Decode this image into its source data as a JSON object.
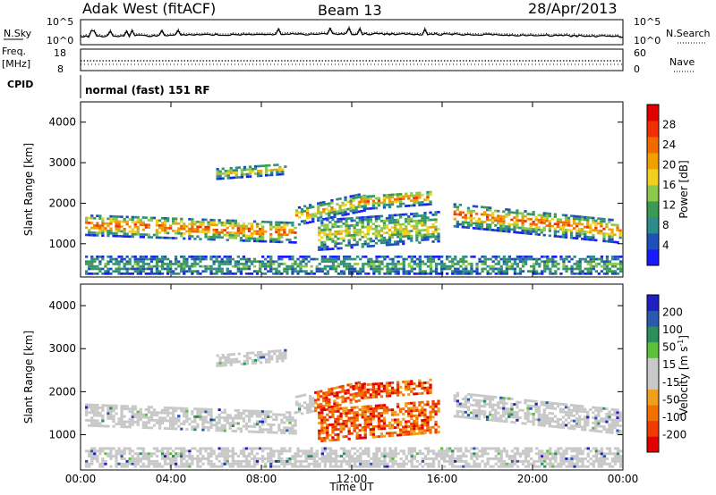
{
  "header": {
    "station": "Adak West (fitACF)",
    "beam": "Beam 13",
    "date": "28/Apr/2013"
  },
  "strip_panels": {
    "nsky_label": "N.Sky",
    "nsearch_label": "N.Search",
    "nsky_ticks": [
      "10^5",
      "10^0"
    ],
    "nsearch_ticks": [
      "10^5",
      "10^0"
    ],
    "freq_label_line1": "Freq.",
    "freq_label_line2": "[MHz]",
    "freq_ticks": [
      "18",
      "8"
    ],
    "nave_label": "Nave",
    "nave_ticks": [
      "60",
      "0"
    ],
    "cpid_label": "CPID",
    "cpid_text": "normal (fast) 151 RF"
  },
  "colors": {
    "power_scale": [
      "#1a1aff",
      "#1f4fb8",
      "#2e8b8b",
      "#3c9a55",
      "#8cc84a",
      "#f0d020",
      "#f0a000",
      "#f06a00",
      "#f03000",
      "#e00000"
    ],
    "velocity_scale": [
      "#2020c0",
      "#2a5ab0",
      "#2a8f5a",
      "#5cc03a",
      "#c8c8c8",
      "#c8c8c8",
      "#f0a020",
      "#f07000",
      "#f03a00",
      "#e00000"
    ]
  },
  "chart_data": [
    {
      "type": "heatmap",
      "title": "Power",
      "ylabel": "Slant Range [km]",
      "xlabel": "",
      "x_ticks": [
        "00:00",
        "04:00",
        "08:00",
        "12:00",
        "16:00",
        "20:00",
        "00:00"
      ],
      "x_range_hours": [
        0,
        24
      ],
      "y_ticks": [
        1000,
        2000,
        3000,
        4000
      ],
      "ylim": [
        180,
        4500
      ],
      "colorbar": {
        "label": "Power [dB]",
        "tick_labels": [
          "4",
          "8",
          "12",
          "16",
          "20",
          "24",
          "28"
        ],
        "range": [
          0,
          30
        ]
      }
    },
    {
      "type": "heatmap",
      "title": "Velocity",
      "ylabel": "Slant Range [km]",
      "xlabel": "Time UT",
      "x_ticks": [
        "00:00",
        "04:00",
        "08:00",
        "12:00",
        "16:00",
        "20:00",
        "00:00"
      ],
      "x_range_hours": [
        0,
        24
      ],
      "y_ticks": [
        1000,
        2000,
        3000,
        4000
      ],
      "ylim": [
        180,
        4500
      ],
      "colorbar": {
        "label": "Velocity [m s",
        "label_sup": "-1",
        "label_end": "]",
        "tick_labels": [
          "200",
          "100",
          "50",
          "15",
          "-15",
          "-50",
          "-100",
          "-200"
        ]
      }
    }
  ]
}
